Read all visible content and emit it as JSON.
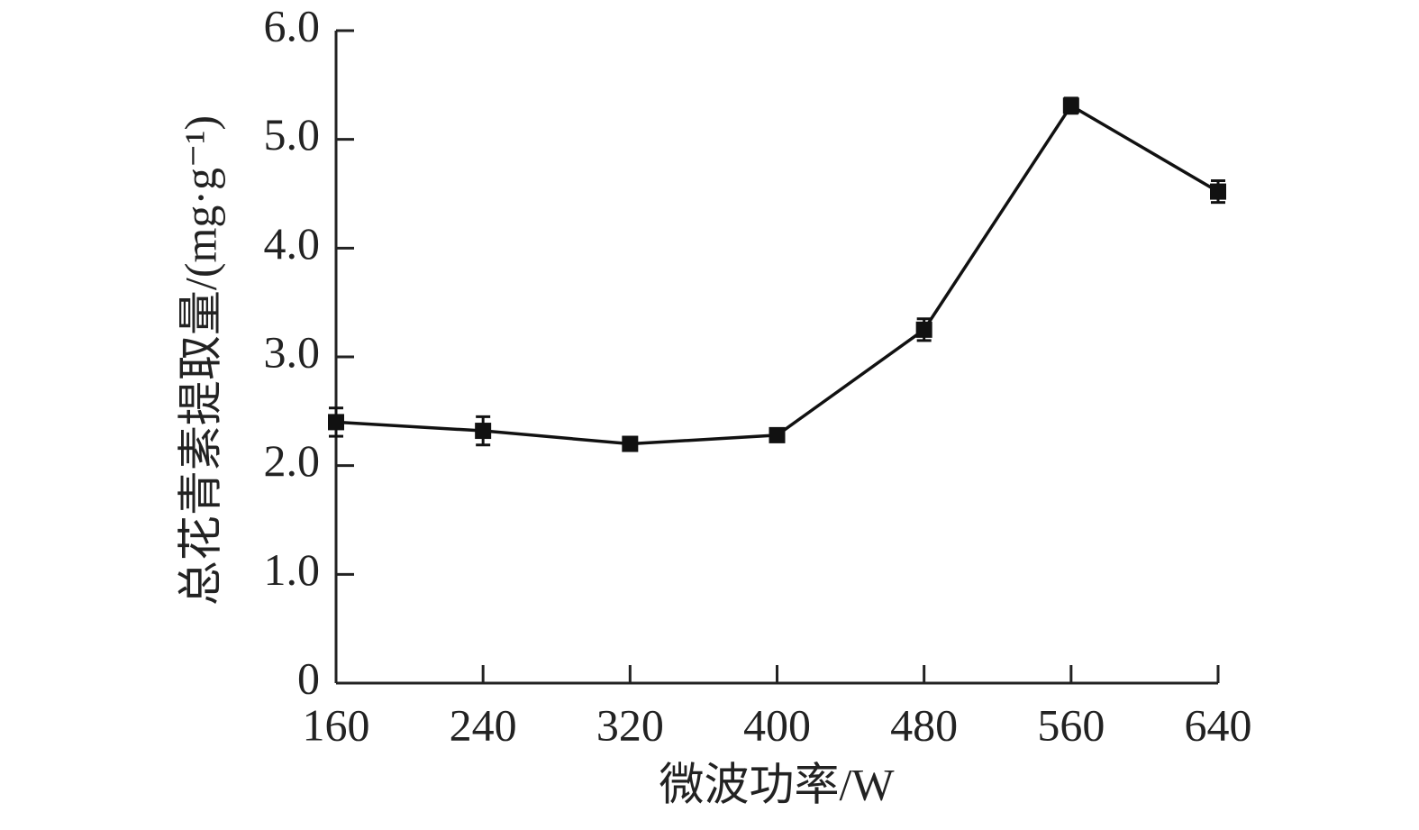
{
  "chart_data": {
    "type": "line",
    "x_label": "微波功率/W",
    "y_label": "总花青素提取量/(mg·g⁻¹)",
    "x": [
      160,
      240,
      320,
      400,
      480,
      560,
      640
    ],
    "series": [
      {
        "color": "#111111",
        "values": [
          2.4,
          2.32,
          2.2,
          2.28,
          3.25,
          5.31,
          4.52
        ],
        "errors": [
          0.13,
          0.13,
          0.06,
          0.03,
          0.1,
          0.07,
          0.1
        ]
      }
    ],
    "xlim": [
      160,
      640
    ],
    "xticks": [
      160,
      240,
      320,
      400,
      480,
      560,
      640
    ],
    "ylim": [
      0,
      6
    ],
    "yticks": [
      0,
      {
        "value": 1,
        "label": "1.0"
      },
      {
        "value": 2,
        "label": "2.0"
      },
      {
        "value": 3,
        "label": "3.0"
      },
      {
        "value": 4,
        "label": "4.0"
      },
      {
        "value": 5,
        "label": "5.0"
      },
      {
        "value": 6,
        "label": "6.0"
      }
    ],
    "grid": false
  }
}
